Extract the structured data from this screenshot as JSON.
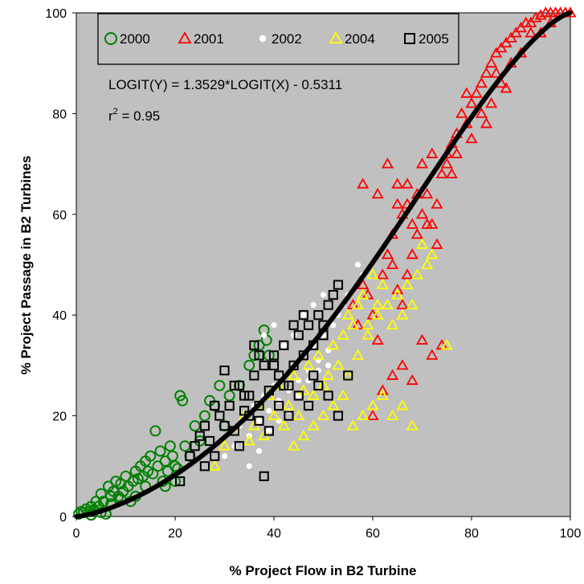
{
  "chart_data": {
    "type": "scatter",
    "xlabel": "% Project Flow in B2 Turbine",
    "ylabel": "% Project Passage in B2 Turbines",
    "xlim": [
      0,
      100
    ],
    "ylim": [
      0,
      100
    ],
    "xticks": [
      "0",
      "20",
      "40",
      "60",
      "80",
      "100"
    ],
    "yticks": [
      "0",
      "20",
      "40",
      "60",
      "80",
      "100"
    ],
    "plot_background": "#c0c0c0",
    "grid": false,
    "legend_position": "top-left",
    "equation": "LOGIT(Y) = 1.3529*LOGIT(X) - 0.5311",
    "r_squared": {
      "prefix": "r",
      "exponent": "2",
      "suffix": " = 0.95"
    },
    "fit": {
      "slope": 1.3529,
      "intercept": -0.5311,
      "color": "#000000"
    },
    "series": [
      {
        "name": "2000",
        "marker": "circle-open",
        "color": "#008000",
        "points": [
          [
            0.5,
            0.5
          ],
          [
            1,
            1
          ],
          [
            1.5,
            0.8
          ],
          [
            2,
            1.5
          ],
          [
            2.5,
            1
          ],
          [
            3,
            2
          ],
          [
            3.5,
            1.2
          ],
          [
            4,
            3
          ],
          [
            4.5,
            2
          ],
          [
            5,
            4.5
          ],
          [
            5.5,
            3
          ],
          [
            6,
            0.5
          ],
          [
            6.5,
            6
          ],
          [
            7,
            4
          ],
          [
            7.5,
            5
          ],
          [
            8,
            7
          ],
          [
            8.5,
            4
          ],
          [
            9,
            6.5
          ],
          [
            9.5,
            5
          ],
          [
            10,
            8
          ],
          [
            10.5,
            6
          ],
          [
            11,
            3
          ],
          [
            11.5,
            7
          ],
          [
            12,
            9
          ],
          [
            12.5,
            7.5
          ],
          [
            13,
            10
          ],
          [
            13.5,
            8
          ],
          [
            14,
            11
          ],
          [
            14.5,
            9
          ],
          [
            15,
            12
          ],
          [
            15.5,
            8.5
          ],
          [
            16,
            17
          ],
          [
            16.5,
            10
          ],
          [
            17,
            13
          ],
          [
            17.5,
            7
          ],
          [
            18,
            11
          ],
          [
            18.5,
            9
          ],
          [
            19,
            14
          ],
          [
            19.5,
            12
          ],
          [
            20,
            10
          ],
          [
            20.5,
            9.5
          ],
          [
            21,
            24
          ],
          [
            21.5,
            23
          ],
          [
            22,
            14
          ],
          [
            23,
            12
          ],
          [
            24,
            18
          ],
          [
            25,
            15
          ],
          [
            26,
            20
          ],
          [
            27,
            23
          ],
          [
            28,
            22
          ],
          [
            29,
            26
          ],
          [
            30,
            18
          ],
          [
            31,
            24
          ],
          [
            33,
            26
          ],
          [
            35,
            30
          ],
          [
            36,
            32
          ],
          [
            37,
            34
          ],
          [
            38,
            37
          ],
          [
            38.5,
            35
          ],
          [
            39,
            32
          ],
          [
            3,
            0.3
          ],
          [
            5,
            0.8
          ],
          [
            7,
            2.5
          ],
          [
            9,
            3.5
          ],
          [
            12,
            4
          ],
          [
            14,
            6
          ],
          [
            18,
            6
          ],
          [
            20,
            7
          ]
        ]
      },
      {
        "name": "2001",
        "marker": "triangle-open",
        "color": "#ff0000",
        "points": [
          [
            56,
            42
          ],
          [
            57,
            38
          ],
          [
            58,
            46
          ],
          [
            59,
            44
          ],
          [
            60,
            40
          ],
          [
            61,
            35
          ],
          [
            62,
            48
          ],
          [
            63,
            52
          ],
          [
            64,
            50
          ],
          [
            64,
            56
          ],
          [
            65,
            45
          ],
          [
            65,
            62
          ],
          [
            66,
            42
          ],
          [
            66,
            60
          ],
          [
            67,
            48
          ],
          [
            67,
            66
          ],
          [
            68,
            52
          ],
          [
            68,
            58
          ],
          [
            69,
            56
          ],
          [
            70,
            60
          ],
          [
            70,
            70
          ],
          [
            71,
            64
          ],
          [
            72,
            58
          ],
          [
            72,
            72
          ],
          [
            73,
            62
          ],
          [
            74,
            68
          ],
          [
            75,
            70
          ],
          [
            75,
            72
          ],
          [
            76,
            74
          ],
          [
            77,
            72
          ],
          [
            78,
            80
          ],
          [
            79,
            78
          ],
          [
            80,
            82
          ],
          [
            81,
            84
          ],
          [
            82,
            86
          ],
          [
            83,
            88
          ],
          [
            84,
            90
          ],
          [
            85,
            92
          ],
          [
            86,
            93
          ],
          [
            87,
            94
          ],
          [
            88,
            95
          ],
          [
            89,
            96
          ],
          [
            90,
            97
          ],
          [
            91,
            98
          ],
          [
            92,
            98
          ],
          [
            93,
            99
          ],
          [
            94,
            99.5
          ],
          [
            95,
            100
          ],
          [
            96,
            100
          ],
          [
            97,
            100
          ],
          [
            98,
            100
          ],
          [
            99,
            100
          ],
          [
            100,
            100
          ],
          [
            62,
            25
          ],
          [
            64,
            28
          ],
          [
            66,
            30
          ],
          [
            68,
            27
          ],
          [
            70,
            35
          ],
          [
            72,
            32
          ],
          [
            74,
            34
          ],
          [
            60,
            20
          ],
          [
            58,
            66
          ],
          [
            61,
            64
          ],
          [
            63,
            70
          ],
          [
            65,
            66
          ],
          [
            67,
            62
          ],
          [
            69,
            64
          ],
          [
            71,
            58
          ],
          [
            73,
            54
          ],
          [
            76,
            68
          ],
          [
            77,
            76
          ],
          [
            79,
            84
          ],
          [
            82,
            80
          ],
          [
            84,
            82
          ],
          [
            85,
            88
          ],
          [
            86,
            86
          ],
          [
            88,
            90
          ],
          [
            90,
            92
          ],
          [
            92,
            96
          ],
          [
            94,
            96
          ],
          [
            96,
            98
          ],
          [
            87,
            85
          ],
          [
            80,
            75
          ],
          [
            83,
            78
          ]
        ]
      },
      {
        "name": "2002",
        "marker": "circle-filled",
        "color": "#ffffff",
        "points": [
          [
            30,
            12
          ],
          [
            32,
            14
          ],
          [
            33,
            18
          ],
          [
            34,
            20
          ],
          [
            35,
            16
          ],
          [
            36,
            22
          ],
          [
            37,
            19
          ],
          [
            38,
            24
          ],
          [
            39,
            21
          ],
          [
            40,
            26
          ],
          [
            41,
            23
          ],
          [
            42,
            28
          ],
          [
            43,
            25
          ],
          [
            44,
            30
          ],
          [
            45,
            27
          ],
          [
            46,
            32
          ],
          [
            47,
            29
          ],
          [
            48,
            34
          ],
          [
            49,
            31
          ],
          [
            50,
            36
          ],
          [
            51,
            33
          ],
          [
            52,
            38
          ],
          [
            53,
            40
          ],
          [
            54,
            42
          ],
          [
            55,
            44
          ],
          [
            57,
            50
          ],
          [
            58,
            48
          ],
          [
            35,
            10
          ],
          [
            37,
            13
          ],
          [
            39,
            17
          ],
          [
            41,
            19
          ],
          [
            43,
            21
          ],
          [
            45,
            24
          ],
          [
            47,
            27
          ],
          [
            49,
            29
          ],
          [
            51,
            30
          ],
          [
            38,
            36
          ],
          [
            40,
            38
          ],
          [
            42,
            34
          ],
          [
            44,
            36
          ],
          [
            46,
            40
          ],
          [
            48,
            42
          ],
          [
            50,
            44
          ]
        ]
      },
      {
        "name": "2004",
        "marker": "triangle-open",
        "color": "#ffff00",
        "points": [
          [
            28,
            10
          ],
          [
            30,
            14
          ],
          [
            32,
            17
          ],
          [
            34,
            20
          ],
          [
            35,
            15
          ],
          [
            36,
            18
          ],
          [
            37,
            22
          ],
          [
            38,
            16
          ],
          [
            39,
            24
          ],
          [
            40,
            20
          ],
          [
            41,
            26
          ],
          [
            42,
            18
          ],
          [
            43,
            22
          ],
          [
            44,
            28
          ],
          [
            45,
            20
          ],
          [
            46,
            25
          ],
          [
            47,
            30
          ],
          [
            48,
            24
          ],
          [
            49,
            32
          ],
          [
            50,
            26
          ],
          [
            51,
            28
          ],
          [
            52,
            34
          ],
          [
            53,
            30
          ],
          [
            54,
            36
          ],
          [
            55,
            28
          ],
          [
            56,
            38
          ],
          [
            57,
            32
          ],
          [
            58,
            44
          ],
          [
            59,
            36
          ],
          [
            60,
            48
          ],
          [
            61,
            40
          ],
          [
            62,
            46
          ],
          [
            63,
            42
          ],
          [
            64,
            38
          ],
          [
            65,
            44
          ],
          [
            66,
            40
          ],
          [
            67,
            46
          ],
          [
            68,
            42
          ],
          [
            69,
            48
          ],
          [
            70,
            54
          ],
          [
            71,
            50
          ],
          [
            72,
            52
          ],
          [
            75,
            34
          ],
          [
            44,
            14
          ],
          [
            46,
            16
          ],
          [
            48,
            18
          ],
          [
            50,
            20
          ],
          [
            52,
            22
          ],
          [
            54,
            24
          ],
          [
            56,
            18
          ],
          [
            58,
            20
          ],
          [
            60,
            22
          ],
          [
            62,
            24
          ],
          [
            64,
            20
          ],
          [
            66,
            22
          ],
          [
            68,
            18
          ],
          [
            55,
            40
          ],
          [
            57,
            42
          ],
          [
            59,
            38
          ],
          [
            61,
            42
          ]
        ]
      },
      {
        "name": "2005",
        "marker": "square-open",
        "color": "#000000",
        "points": [
          [
            21,
            7
          ],
          [
            23,
            12
          ],
          [
            24,
            14
          ],
          [
            25,
            16
          ],
          [
            26,
            18
          ],
          [
            27,
            15
          ],
          [
            28,
            12
          ],
          [
            29,
            20
          ],
          [
            30,
            18
          ],
          [
            31,
            22
          ],
          [
            32,
            17
          ],
          [
            33,
            26
          ],
          [
            34,
            21
          ],
          [
            35,
            24
          ],
          [
            36,
            28
          ],
          [
            37,
            22
          ],
          [
            38,
            30
          ],
          [
            39,
            25
          ],
          [
            40,
            32
          ],
          [
            41,
            28
          ],
          [
            42,
            34
          ],
          [
            43,
            26
          ],
          [
            44,
            30
          ],
          [
            45,
            36
          ],
          [
            46,
            32
          ],
          [
            47,
            38
          ],
          [
            48,
            34
          ],
          [
            49,
            40
          ],
          [
            50,
            36
          ],
          [
            51,
            42
          ],
          [
            52,
            44
          ],
          [
            53,
            46
          ],
          [
            38,
            8
          ],
          [
            33,
            14
          ],
          [
            35,
            20
          ],
          [
            37,
            19
          ],
          [
            39,
            17
          ],
          [
            41,
            22
          ],
          [
            43,
            20
          ],
          [
            45,
            24
          ],
          [
            47,
            22
          ],
          [
            49,
            26
          ],
          [
            51,
            24
          ],
          [
            53,
            20
          ],
          [
            55,
            28
          ],
          [
            36,
            34
          ],
          [
            40,
            30
          ],
          [
            44,
            38
          ],
          [
            48,
            28
          ],
          [
            46,
            40
          ],
          [
            50,
            38
          ],
          [
            42,
            26
          ],
          [
            26,
            10
          ],
          [
            28,
            22
          ],
          [
            30,
            29
          ],
          [
            32,
            26
          ],
          [
            34,
            24
          ],
          [
            37,
            32
          ]
        ]
      }
    ]
  }
}
